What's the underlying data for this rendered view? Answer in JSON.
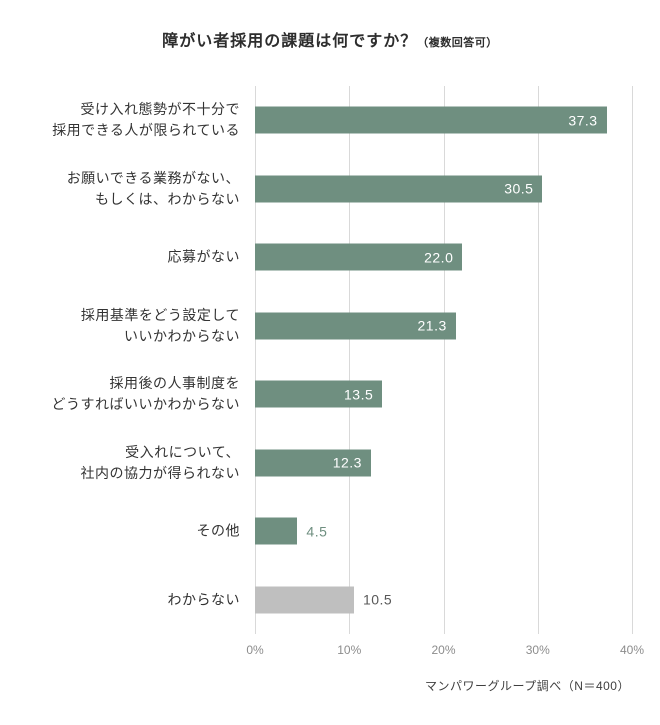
{
  "title": {
    "main": "障がい者採用の課題は何ですか？",
    "note": "（複数回答可）"
  },
  "footer": {
    "source": "マンパワーグループ調べ（N＝400）"
  },
  "colors": {
    "bar_green": "#6f8f80",
    "bar_gray": "#bfbfbf",
    "gridline": "#d9d9d9",
    "value_inside_text": "#ffffff",
    "value_outside_green_text": "#6f8f80",
    "value_outside_gray_text": "#595959",
    "axis_text": "#8c8c8c",
    "category_text": "#333333"
  },
  "chart_data": {
    "type": "bar",
    "orientation": "horizontal",
    "title": "障がい者採用の課題は何ですか？（複数回答可）",
    "xlabel": "",
    "ylabel": "",
    "xlim": [
      0,
      40
    ],
    "x_ticks": [
      "0%",
      "10%",
      "20%",
      "30%",
      "40%"
    ],
    "grid": true,
    "legend": false,
    "source": "マンパワーグループ調べ（N＝400）",
    "categories": [
      "受け入れ態勢が不十分で採用できる人が限られている",
      "お願いできる業務がない、もしくは、わからない",
      "応募がない",
      "採用基準をどう設定していいかわからない",
      "採用後の人事制度をどうすればいいかわからない",
      "受入れについて、社内の協力が得られない",
      "その他",
      "わからない"
    ],
    "values": [
      37.3,
      30.5,
      22.0,
      21.3,
      13.5,
      12.3,
      4.5,
      10.5
    ],
    "bars": [
      {
        "label_lines": [
          "受け入れ態勢が不十分で",
          "採用できる人が限られている"
        ],
        "value": 37.3,
        "value_label": "37.3",
        "color": "green",
        "value_position": "inside"
      },
      {
        "label_lines": [
          "お願いできる業務がない、",
          "もしくは、わからない"
        ],
        "value": 30.5,
        "value_label": "30.5",
        "color": "green",
        "value_position": "inside"
      },
      {
        "label_lines": [
          "応募がない"
        ],
        "value": 22.0,
        "value_label": "22.0",
        "color": "green",
        "value_position": "inside"
      },
      {
        "label_lines": [
          "採用基準をどう設定して",
          "いいかわからない"
        ],
        "value": 21.3,
        "value_label": "21.3",
        "color": "green",
        "value_position": "inside"
      },
      {
        "label_lines": [
          "採用後の人事制度を",
          "どうすればいいかわからない"
        ],
        "value": 13.5,
        "value_label": "13.5",
        "color": "green",
        "value_position": "inside"
      },
      {
        "label_lines": [
          "受入れについて、",
          "社内の協力が得られない"
        ],
        "value": 12.3,
        "value_label": "12.3",
        "color": "green",
        "value_position": "inside"
      },
      {
        "label_lines": [
          "その他"
        ],
        "value": 4.5,
        "value_label": "4.5",
        "color": "green",
        "value_position": "outside"
      },
      {
        "label_lines": [
          "わからない"
        ],
        "value": 10.5,
        "value_label": "10.5",
        "color": "gray",
        "value_position": "outside"
      }
    ]
  }
}
